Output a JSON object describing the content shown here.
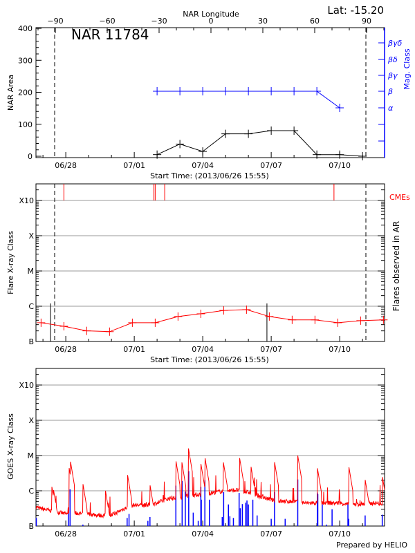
{
  "colors": {
    "area": "#000000",
    "mag_class": "#0000ff",
    "flare": "#ff0000",
    "cme": "#ff0000",
    "goes": "#ff0000",
    "goes_events": "#0000ff",
    "grid": "#999999"
  },
  "footer": {
    "credit": "Prepared by HELIO"
  },
  "chart_data": [
    {
      "type": "line",
      "title": "NAR 11784",
      "lat_label": "Lat: -15.20",
      "top_axis_label": "NAR Longitude",
      "top_ticks": [
        -90,
        -60,
        -30,
        0,
        30,
        60,
        90
      ],
      "xlabel": "Start Time: (2013/06/26 15:55)",
      "start_time": "2013-06-26 15:55",
      "x_tick_labels": [
        "06/28",
        "07/01",
        "07/04",
        "07/07",
        "07/10"
      ],
      "ylabel": "NAR Area",
      "ylim": [
        0,
        400
      ],
      "y_ticks": [
        0,
        100,
        200,
        300,
        400
      ],
      "y2label": "Mag. Class",
      "y2_classes": [
        "α",
        "β",
        "βγ",
        "βδ",
        "βγδ"
      ],
      "limb_longitudes": [
        -90,
        90
      ],
      "series": [
        {
          "name": "NAR Area",
          "x": [
            "2013-07-02 00:00",
            "2013-07-03 00:00",
            "2013-07-04 00:00",
            "2013-07-05 00:00",
            "2013-07-06 00:00",
            "2013-07-07 00:00",
            "2013-07-08 00:00",
            "2013-07-09 00:00",
            "2013-07-10 00:00",
            "2013-07-11 00:00"
          ],
          "values": [
            5,
            38,
            15,
            70,
            70,
            80,
            80,
            5,
            5,
            0
          ]
        },
        {
          "name": "Mag. Class",
          "x": [
            "2013-07-02 00:00",
            "2013-07-03 00:00",
            "2013-07-04 00:00",
            "2013-07-05 00:00",
            "2013-07-06 00:00",
            "2013-07-07 00:00",
            "2013-07-08 00:00",
            "2013-07-09 00:00",
            "2013-07-10 00:00"
          ],
          "values": [
            "β",
            "β",
            "β",
            "β",
            "β",
            "β",
            "β",
            "β",
            "α"
          ]
        }
      ]
    },
    {
      "type": "line",
      "xlabel": "Start Time: (2013/06/26 15:55)",
      "x_tick_labels": [
        "06/28",
        "07/01",
        "07/04",
        "07/07",
        "07/10"
      ],
      "ylabel": "Flare X-ray Class",
      "y2label": "Flares observed in AR",
      "cme_label": "CMEs",
      "y_scale": "log",
      "y_classes": [
        "B",
        "C",
        "M",
        "X",
        "X10"
      ],
      "ylim_flux": [
        1e-07,
        0.003
      ],
      "grid": true,
      "background_flux": {
        "x": [
          "2013-06-26 22:00",
          "2013-06-27 22:00",
          "2013-06-28 22:00",
          "2013-06-29 22:00",
          "2013-06-30 22:00",
          "2013-07-01 22:00",
          "2013-07-02 22:00",
          "2013-07-03 22:00",
          "2013-07-04 22:00",
          "2013-07-05 22:00",
          "2013-07-06 22:00",
          "2013-07-07 22:00",
          "2013-07-08 22:00",
          "2013-07-09 22:00",
          "2013-07-10 22:00",
          "2013-07-11 22:00"
        ],
        "values": [
          3.4e-07,
          2.7e-07,
          2e-07,
          1.9e-07,
          3.4e-07,
          3.4e-07,
          5.1e-07,
          6.1e-07,
          7.6e-07,
          8e-07,
          5.1e-07,
          4.1e-07,
          4.1e-07,
          3.4e-07,
          3.9e-07,
          4.1e-07
        ]
      },
      "flares": [
        [
          "2013-06-27 08:00",
          1.2e-06
        ],
        [
          "2013-07-06 19:30",
          1.2e-06
        ]
      ],
      "cmes": [
        "2013-06-27 22:00",
        "2013-07-01 20:40",
        "2013-07-01 22:00",
        "2013-07-02 08:00",
        "2013-07-09 18:00"
      ]
    },
    {
      "type": "line",
      "ylabel": "GOES X-ray Class",
      "x_tick_labels": [
        "06/28",
        "07/01",
        "07/04",
        "07/07",
        "07/10"
      ],
      "y_scale": "log",
      "y_classes": [
        "B",
        "C",
        "M",
        "X",
        "X10"
      ],
      "grid": true,
      "goes_baseline": [
        [
          "2013-06-26 16:00",
          3.5e-07
        ],
        [
          "2013-06-27 00:00",
          3e-07
        ],
        [
          "2013-06-27 12:00",
          2.6e-07
        ],
        [
          "2013-06-28 00:00",
          2.2e-07
        ],
        [
          "2013-06-28 12:00",
          2.3e-07
        ],
        [
          "2013-06-29 00:00",
          2.2e-07
        ],
        [
          "2013-06-29 12:00",
          2e-07
        ],
        [
          "2013-06-30 00:00",
          2e-07
        ],
        [
          "2013-06-30 12:00",
          3e-07
        ],
        [
          "2013-07-01 00:00",
          4e-07
        ],
        [
          "2013-07-01 12:00",
          3.8e-07
        ],
        [
          "2013-07-02 00:00",
          4.5e-07
        ],
        [
          "2013-07-02 12:00",
          6e-07
        ],
        [
          "2013-07-03 00:00",
          6.5e-07
        ],
        [
          "2013-07-03 12:00",
          7.5e-07
        ],
        [
          "2013-07-04 00:00",
          8e-07
        ],
        [
          "2013-07-04 12:00",
          9e-07
        ],
        [
          "2013-07-05 00:00",
          1e-06
        ],
        [
          "2013-07-05 12:00",
          1.05e-06
        ],
        [
          "2013-07-06 00:00",
          9e-07
        ],
        [
          "2013-07-06 12:00",
          7e-07
        ],
        [
          "2013-07-07 00:00",
          5.5e-07
        ],
        [
          "2013-07-07 12:00",
          5e-07
        ],
        [
          "2013-07-08 00:00",
          5e-07
        ],
        [
          "2013-07-08 12:00",
          4.5e-07
        ],
        [
          "2013-07-09 00:00",
          4.5e-07
        ],
        [
          "2013-07-09 12:00",
          4.5e-07
        ],
        [
          "2013-07-10 00:00",
          4.5e-07
        ],
        [
          "2013-07-10 12:00",
          4e-07
        ],
        [
          "2013-07-11 00:00",
          4.2e-07
        ],
        [
          "2013-07-11 12:00",
          4.5e-07
        ],
        [
          "2013-07-12 00:00",
          4.3e-07
        ],
        [
          "2013-07-12 22:00",
          3.5e-07
        ]
      ],
      "goes_peaks": [
        [
          "2013-06-27 09:10",
          1.4e-06
        ],
        [
          "2013-06-27 10:50",
          1.2e-06
        ],
        [
          "2013-06-28 03:30",
          4.5e-06
        ],
        [
          "2013-06-28 04:40",
          7.6e-06
        ],
        [
          "2013-06-28 18:00",
          1.6e-06
        ],
        [
          "2013-06-29 17:30",
          1.1e-06
        ],
        [
          "2013-06-30 17:00",
          2.8e-06
        ],
        [
          "2013-07-01 16:30",
          1.5e-06
        ],
        [
          "2013-07-02 19:45",
          7.3e-06
        ],
        [
          "2013-07-03 01:45",
          7.3e-06
        ],
        [
          "2013-07-03 09:00",
          1.6e-05
        ],
        [
          "2013-07-03 22:00",
          6e-06
        ],
        [
          "2013-07-04 02:15",
          9.1e-06
        ],
        [
          "2013-07-04 21:30",
          7e-06
        ],
        [
          "2013-07-05 14:45",
          8.7e-06
        ],
        [
          "2013-07-06 02:45",
          4.9e-06
        ],
        [
          "2013-07-07 03:30",
          6.6e-06
        ],
        [
          "2013-07-08 03:55",
          1e-05
        ],
        [
          "2013-07-09 00:30",
          4.6e-06
        ],
        [
          "2013-07-10 09:30",
          5.1e-06
        ],
        [
          "2013-07-11 02:45",
          2.1e-06
        ],
        [
          "2013-07-11 20:45",
          2.7e-06
        ]
      ],
      "events": [
        [
          "2013-06-26 17:00",
          1.7e-07
        ],
        [
          "2013-06-28 02:40",
          3.2e-07
        ],
        [
          "2013-06-28 04:30",
          1.1e-06
        ],
        [
          "2013-06-28 18:00",
          1.1e-07
        ],
        [
          "2013-06-30 16:30",
          1.7e-07
        ],
        [
          "2013-06-30 18:30",
          2.2e-07
        ],
        [
          "2013-07-01 14:20",
          1.4e-07
        ],
        [
          "2013-07-01 16:30",
          1.8e-07
        ],
        [
          "2013-07-02 19:45",
          1.4e-06
        ],
        [
          "2013-07-03 02:20",
          1.9e-06
        ],
        [
          "2013-07-03 05:40",
          9.5e-07
        ],
        [
          "2013-07-03 09:15",
          3.6e-06
        ],
        [
          "2013-07-03 14:00",
          2.4e-07
        ],
        [
          "2013-07-03 19:15",
          1.4e-07
        ],
        [
          "2013-07-03 22:00",
          1.3e-06
        ],
        [
          "2013-07-03 22:30",
          5.6e-07
        ],
        [
          "2013-07-04 02:15",
          2e-06
        ],
        [
          "2013-07-04 07:00",
          5.6e-07
        ],
        [
          "2013-07-04 20:30",
          1.8e-07
        ],
        [
          "2013-07-04 22:00",
          9.2e-07
        ],
        [
          "2013-07-05 03:00",
          4.1e-07
        ],
        [
          "2013-07-05 04:30",
          1.9e-07
        ],
        [
          "2013-07-05 08:15",
          1.7e-07
        ],
        [
          "2013-07-05 14:15",
          8.7e-07
        ],
        [
          "2013-07-05 15:30",
          3.2e-07
        ],
        [
          "2013-07-05 17:40",
          4.2e-07
        ],
        [
          "2013-07-05 21:15",
          4.6e-07
        ],
        [
          "2013-07-05 22:30",
          5.3e-07
        ],
        [
          "2013-07-06 00:00",
          4.1e-07
        ],
        [
          "2013-07-06 04:40",
          5.6e-07
        ],
        [
          "2013-07-06 09:10",
          2e-07
        ],
        [
          "2013-07-07 00:00",
          1.6e-07
        ],
        [
          "2013-07-07 03:30",
          9.2e-07
        ],
        [
          "2013-07-07 14:40",
          1.6e-07
        ],
        [
          "2013-07-08 03:55",
          2.1e-06
        ],
        [
          "2013-07-09 00:30",
          8.9e-07
        ],
        [
          "2013-07-09 01:00",
          8e-07
        ],
        [
          "2013-07-09 05:40",
          4.2e-07
        ],
        [
          "2013-07-09 10:00",
          1.1e-07
        ],
        [
          "2013-07-09 16:00",
          3e-07
        ],
        [
          "2013-07-10 08:40",
          4.7e-07
        ],
        [
          "2013-07-10 09:30",
          1.6e-07
        ],
        [
          "2013-07-11 02:45",
          2e-07
        ],
        [
          "2013-07-11 20:45",
          2.1e-07
        ]
      ]
    }
  ]
}
